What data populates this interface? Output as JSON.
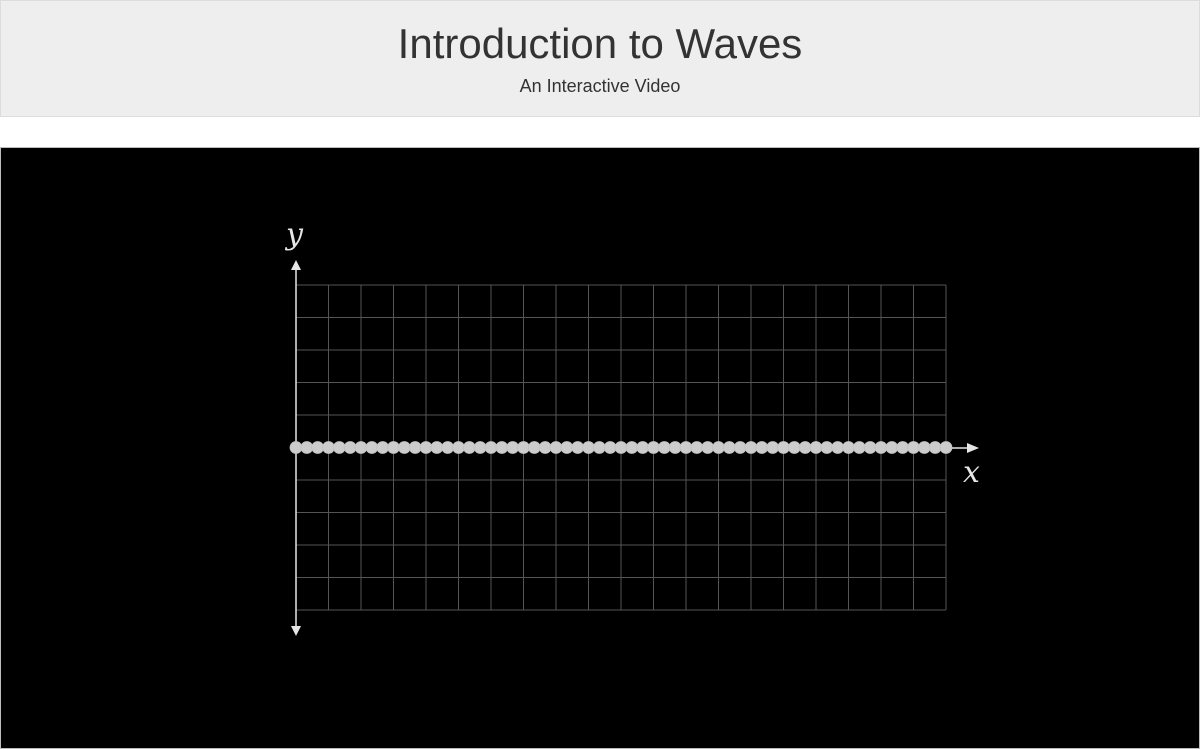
{
  "header": {
    "title": "Introduction to Waves",
    "subtitle": "An Interactive Video"
  },
  "colors": {
    "header_bg": "#eeeeee",
    "stage_bg": "#000000",
    "grid": "#555555",
    "axis": "#e6e6e6",
    "particle": "#cccccc"
  },
  "chart_data": {
    "type": "scatter",
    "xlabel": "x",
    "ylabel": "y",
    "grid": true,
    "grid_cols": 20,
    "grid_rows": 10,
    "xlim": [
      0,
      20
    ],
    "ylim": [
      -5,
      5
    ],
    "particle_count": 61,
    "particle_y": 0,
    "amplitude": 0
  }
}
